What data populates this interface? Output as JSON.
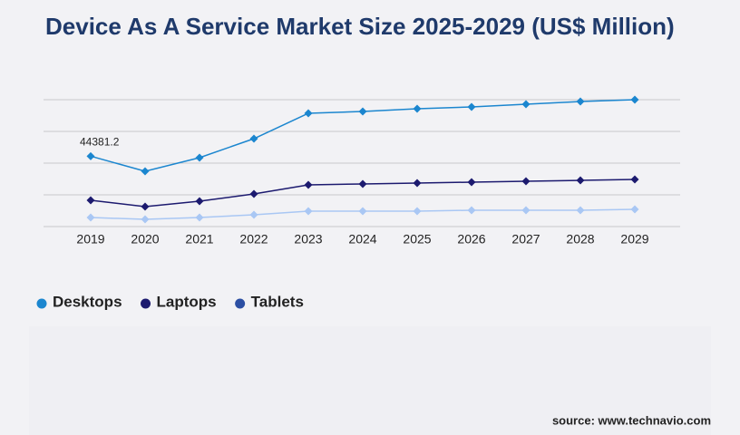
{
  "chart_data": {
    "type": "line",
    "title": "Device As A Service Market Size 2025-2029 (US$ Million)",
    "categories": [
      "2019",
      "2020",
      "2021",
      "2022",
      "2023",
      "2024",
      "2025",
      "2026",
      "2027",
      "2028",
      "2029"
    ],
    "series": [
      {
        "name": "Desktops",
        "color": "#1b86cf",
        "values": [
          44381.2,
          34860,
          43430,
          55430,
          71430,
          72570,
          74290,
          75430,
          77140,
          78860,
          80000
        ],
        "value_labels": [
          "44381.2",
          null,
          null,
          null,
          null,
          null,
          null,
          null,
          null,
          null,
          null
        ]
      },
      {
        "name": "Laptops",
        "color": "#1c1a6f",
        "values": [
          16570,
          12570,
          16000,
          20570,
          26290,
          26860,
          27430,
          28000,
          28570,
          29140,
          29710
        ]
      },
      {
        "name": "Tablets",
        "color": "#a9c7f4",
        "values": [
          5710,
          4570,
          5710,
          7430,
          9710,
          9710,
          9710,
          10290,
          10290,
          10290,
          10860
        ]
      }
    ],
    "ylim": [
      0,
      80000
    ],
    "yticks": [
      0,
      20000,
      40000,
      60000,
      80000
    ],
    "grid": true,
    "source": "source: www.technavio.com"
  }
}
